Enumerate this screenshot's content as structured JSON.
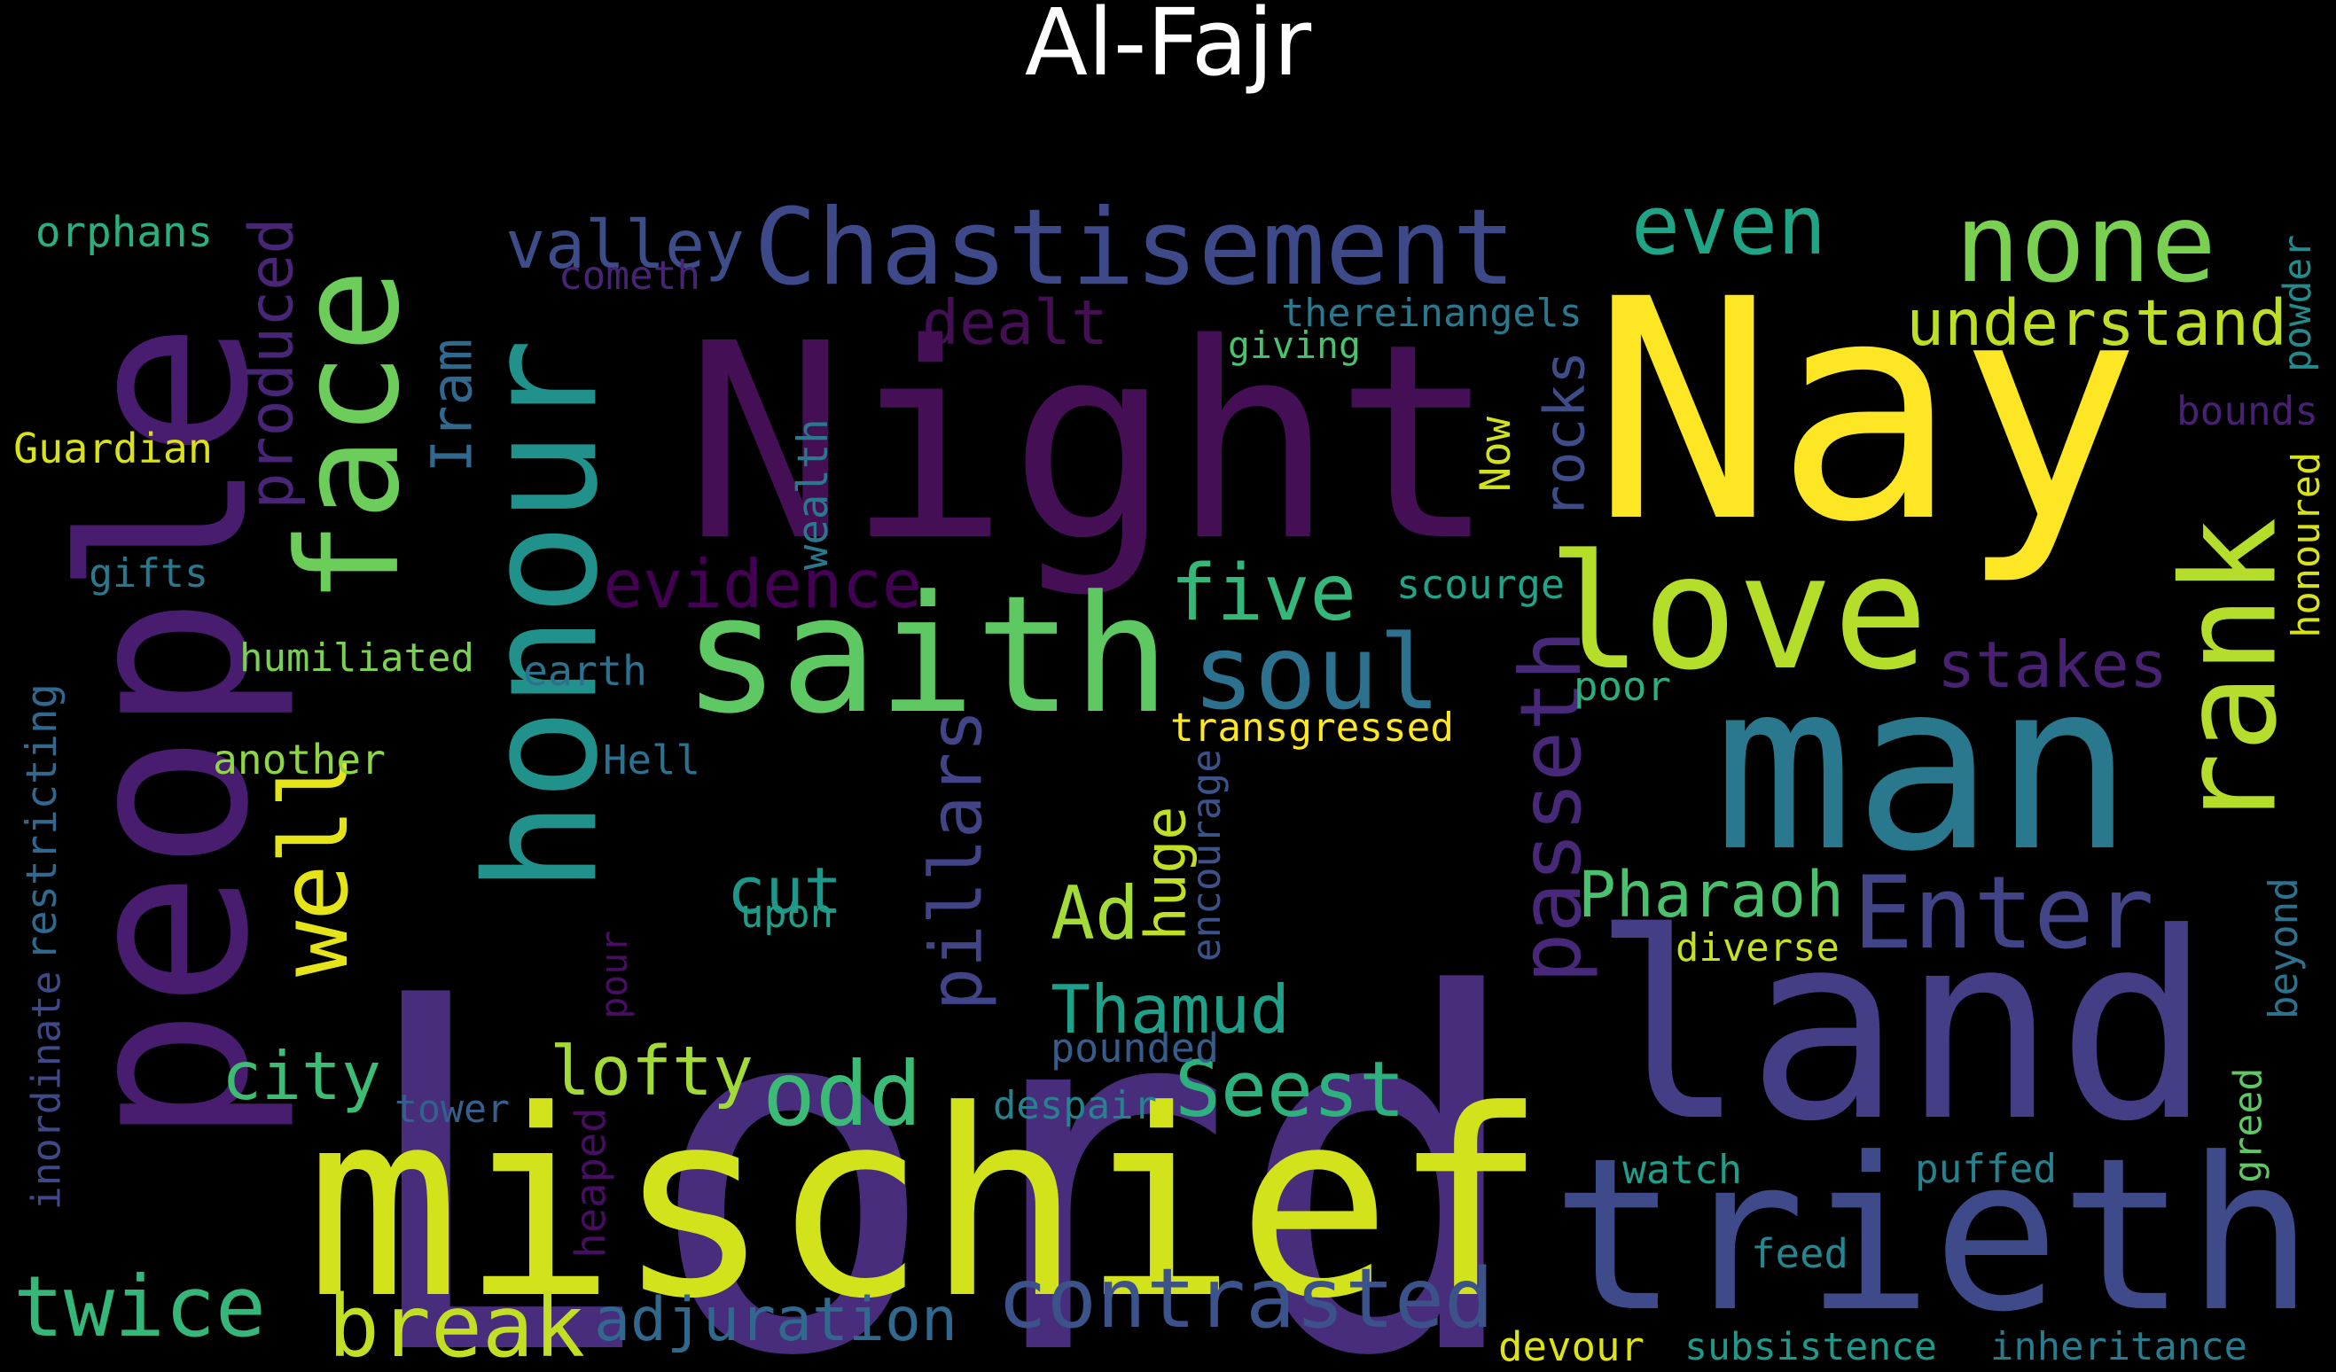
{
  "title": "Al-Fajr",
  "words": [
    {
      "text": "Lord",
      "color": "#472d7b"
    },
    {
      "text": "Night",
      "color": "#440f54"
    },
    {
      "text": "Nay",
      "color": "#fde725"
    },
    {
      "text": "people",
      "color": "#481c6e"
    },
    {
      "text": "mischief",
      "color": "#d2e21b"
    },
    {
      "text": "land",
      "color": "#433e85"
    },
    {
      "text": "man",
      "color": "#2a788e"
    },
    {
      "text": "trieth",
      "color": "#3e4a89"
    },
    {
      "text": "honour",
      "color": "#21918c"
    },
    {
      "text": "face",
      "color": "#6ccd5a"
    },
    {
      "text": "saith",
      "color": "#5ec962"
    },
    {
      "text": "love",
      "color": "#b5de2b"
    },
    {
      "text": "rank",
      "color": "#b4dd2c"
    },
    {
      "text": "Chastisement",
      "color": "#3e4989"
    },
    {
      "text": "none",
      "color": "#7ad151"
    },
    {
      "text": "well",
      "color": "#e5e419"
    },
    {
      "text": "soul",
      "color": "#2c728e"
    },
    {
      "text": "Enter",
      "color": "#414487"
    },
    {
      "text": "contrasted",
      "color": "#3b528b"
    },
    {
      "text": "passeth",
      "color": "#482878"
    },
    {
      "text": "even",
      "color": "#20a486"
    },
    {
      "text": "understand",
      "color": "#bddf26"
    },
    {
      "text": "five",
      "color": "#35b779"
    },
    {
      "text": "break",
      "color": "#c2df23"
    },
    {
      "text": "adjuration",
      "color": "#31688e"
    },
    {
      "text": "twice",
      "color": "#35b779"
    },
    {
      "text": "Pharaoh",
      "color": "#4ac16d"
    },
    {
      "text": "evidence",
      "color": "#440154"
    },
    {
      "text": "stakes",
      "color": "#482173"
    },
    {
      "text": "pillars",
      "color": "#414487"
    },
    {
      "text": "Thamud",
      "color": "#1fa088"
    },
    {
      "text": "lofty",
      "color": "#a2da37"
    },
    {
      "text": "odd",
      "color": "#3bbb75"
    },
    {
      "text": "Seest",
      "color": "#2db27d"
    },
    {
      "text": "valley",
      "color": "#3d4d8a"
    },
    {
      "text": "produced",
      "color": "#482576"
    },
    {
      "text": "Iram",
      "color": "#31688e"
    },
    {
      "text": "rocks",
      "color": "#3e4c8a"
    },
    {
      "text": "dealt",
      "color": "#440f54"
    },
    {
      "text": "huge",
      "color": "#c0df25"
    },
    {
      "text": "cut",
      "color": "#1f968b"
    },
    {
      "text": "Ad",
      "color": "#a5db36"
    },
    {
      "text": "city",
      "color": "#3dbc74"
    },
    {
      "text": "orphans",
      "color": "#2ab07f"
    },
    {
      "text": "Guardian",
      "color": "#d8e219"
    },
    {
      "text": "gifts",
      "color": "#2a788e"
    },
    {
      "text": "humiliated",
      "color": "#7ad151"
    },
    {
      "text": "another",
      "color": "#8ed645"
    },
    {
      "text": "restricting",
      "color": "#31688e"
    },
    {
      "text": "inordinate",
      "color": "#3f4889"
    },
    {
      "text": "earth",
      "color": "#2c728e"
    },
    {
      "text": "Hell",
      "color": "#2c728e"
    },
    {
      "text": "wealth",
      "color": "#2a788e"
    },
    {
      "text": "cometh",
      "color": "#482475"
    },
    {
      "text": "thereinangels",
      "color": "#2a788e"
    },
    {
      "text": "giving",
      "color": "#4ac16d"
    },
    {
      "text": "scourge",
      "color": "#20a386"
    },
    {
      "text": "Now",
      "color": "#d2e21b"
    },
    {
      "text": "poor",
      "color": "#2ab07f"
    },
    {
      "text": "transgressed",
      "color": "#fde725"
    },
    {
      "text": "encourage",
      "color": "#3b528b"
    },
    {
      "text": "upon",
      "color": "#1f9e89"
    },
    {
      "text": "pounded",
      "color": "#365c8d"
    },
    {
      "text": "despair",
      "color": "#26828e"
    },
    {
      "text": "tower",
      "color": "#355f8d"
    },
    {
      "text": "pour",
      "color": "#470e61"
    },
    {
      "text": "heaped",
      "color": "#470d60"
    },
    {
      "text": "diverse",
      "color": "#c8e020"
    },
    {
      "text": "watch",
      "color": "#1f9e89"
    },
    {
      "text": "puffed",
      "color": "#26828e"
    },
    {
      "text": "feed",
      "color": "#24868e"
    },
    {
      "text": "devour",
      "color": "#dde318"
    },
    {
      "text": "subsistence",
      "color": "#1f998a"
    },
    {
      "text": "inheritance",
      "color": "#287c8e"
    },
    {
      "text": "bounds",
      "color": "#482173"
    },
    {
      "text": "powder",
      "color": "#238a8d"
    },
    {
      "text": "honoured",
      "color": "#d8e219"
    },
    {
      "text": "beyond",
      "color": "#2c728e"
    },
    {
      "text": "greed",
      "color": "#5ec962"
    }
  ]
}
